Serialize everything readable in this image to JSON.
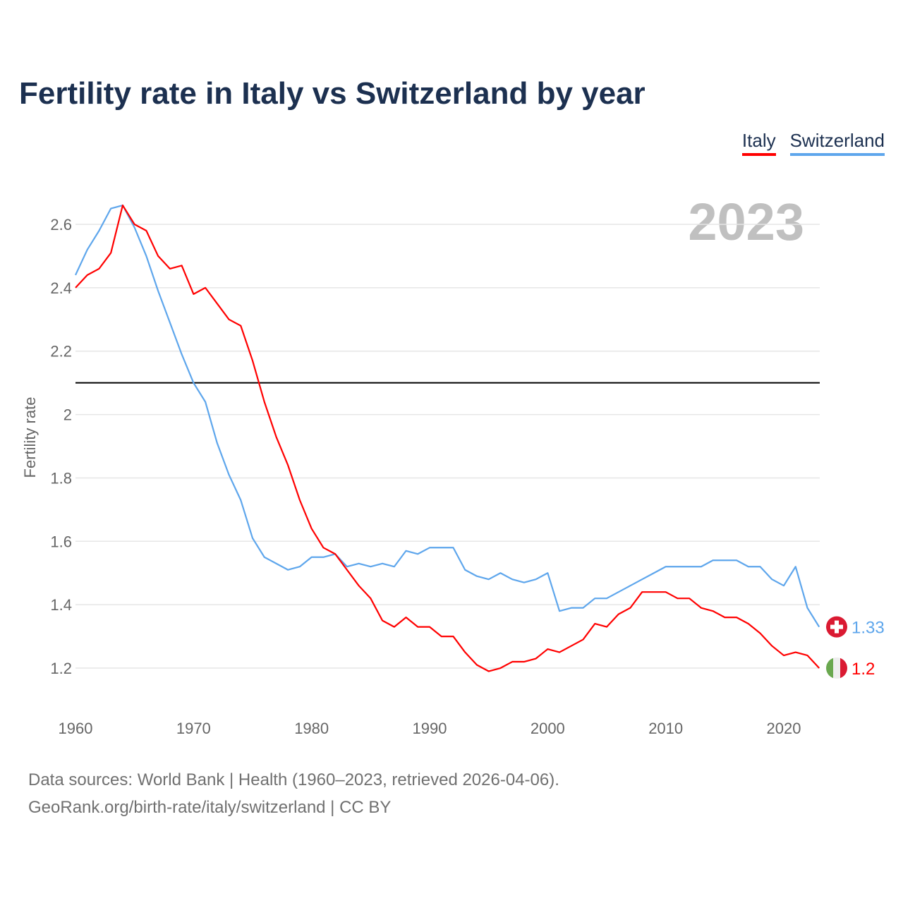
{
  "chart_data": {
    "type": "line",
    "title": "Fertility rate in Italy vs Switzerland by year",
    "xlabel": "",
    "ylabel": "Fertility rate",
    "year_label": "2023",
    "xlim": [
      1960,
      2023
    ],
    "ylim": [
      1.1,
      2.68
    ],
    "xticks": [
      1960,
      1970,
      1980,
      1990,
      2000,
      2010,
      2020
    ],
    "yticks": [
      1.2,
      1.4,
      1.6,
      1.8,
      2,
      2.2,
      2.4,
      2.6
    ],
    "reference_line": 2.1,
    "grid": true,
    "legend_position": "top-right",
    "x": [
      1960,
      1961,
      1962,
      1963,
      1964,
      1965,
      1966,
      1967,
      1968,
      1969,
      1970,
      1971,
      1972,
      1973,
      1974,
      1975,
      1976,
      1977,
      1978,
      1979,
      1980,
      1981,
      1982,
      1983,
      1984,
      1985,
      1986,
      1987,
      1988,
      1989,
      1990,
      1991,
      1992,
      1993,
      1994,
      1995,
      1996,
      1997,
      1998,
      1999,
      2000,
      2001,
      2002,
      2003,
      2004,
      2005,
      2006,
      2007,
      2008,
      2009,
      2010,
      2011,
      2012,
      2013,
      2014,
      2015,
      2016,
      2017,
      2018,
      2019,
      2020,
      2021,
      2022,
      2023
    ],
    "series": [
      {
        "name": "Italy",
        "color": "#ff0000",
        "end_label": "1.2",
        "values": [
          2.4,
          2.44,
          2.46,
          2.51,
          2.66,
          2.6,
          2.58,
          2.5,
          2.46,
          2.47,
          2.38,
          2.4,
          2.35,
          2.3,
          2.28,
          2.17,
          2.04,
          1.93,
          1.84,
          1.73,
          1.64,
          1.58,
          1.56,
          1.51,
          1.46,
          1.42,
          1.35,
          1.33,
          1.36,
          1.33,
          1.33,
          1.3,
          1.3,
          1.25,
          1.21,
          1.19,
          1.2,
          1.22,
          1.22,
          1.23,
          1.26,
          1.25,
          1.27,
          1.29,
          1.34,
          1.33,
          1.37,
          1.39,
          1.44,
          1.44,
          1.44,
          1.42,
          1.42,
          1.39,
          1.38,
          1.36,
          1.36,
          1.34,
          1.31,
          1.27,
          1.24,
          1.25,
          1.24,
          1.2
        ]
      },
      {
        "name": "Switzerland",
        "color": "#5ea6ec",
        "end_label": "1.33",
        "values": [
          2.44,
          2.52,
          2.58,
          2.65,
          2.66,
          2.59,
          2.5,
          2.39,
          2.29,
          2.19,
          2.1,
          2.04,
          1.91,
          1.81,
          1.73,
          1.61,
          1.55,
          1.53,
          1.51,
          1.52,
          1.55,
          1.55,
          1.56,
          1.52,
          1.53,
          1.52,
          1.53,
          1.52,
          1.57,
          1.56,
          1.58,
          1.58,
          1.58,
          1.51,
          1.49,
          1.48,
          1.5,
          1.48,
          1.47,
          1.48,
          1.5,
          1.38,
          1.39,
          1.39,
          1.42,
          1.42,
          1.44,
          1.46,
          1.48,
          1.5,
          1.52,
          1.52,
          1.52,
          1.52,
          1.54,
          1.54,
          1.54,
          1.52,
          1.52,
          1.48,
          1.46,
          1.52,
          1.39,
          1.33
        ]
      }
    ]
  },
  "footer": {
    "line1": "Data sources: World Bank | Health (1960–2023, retrieved 2026-04-06).",
    "line2": "GeoRank.org/birth-rate/italy/switzerland | CC BY"
  }
}
